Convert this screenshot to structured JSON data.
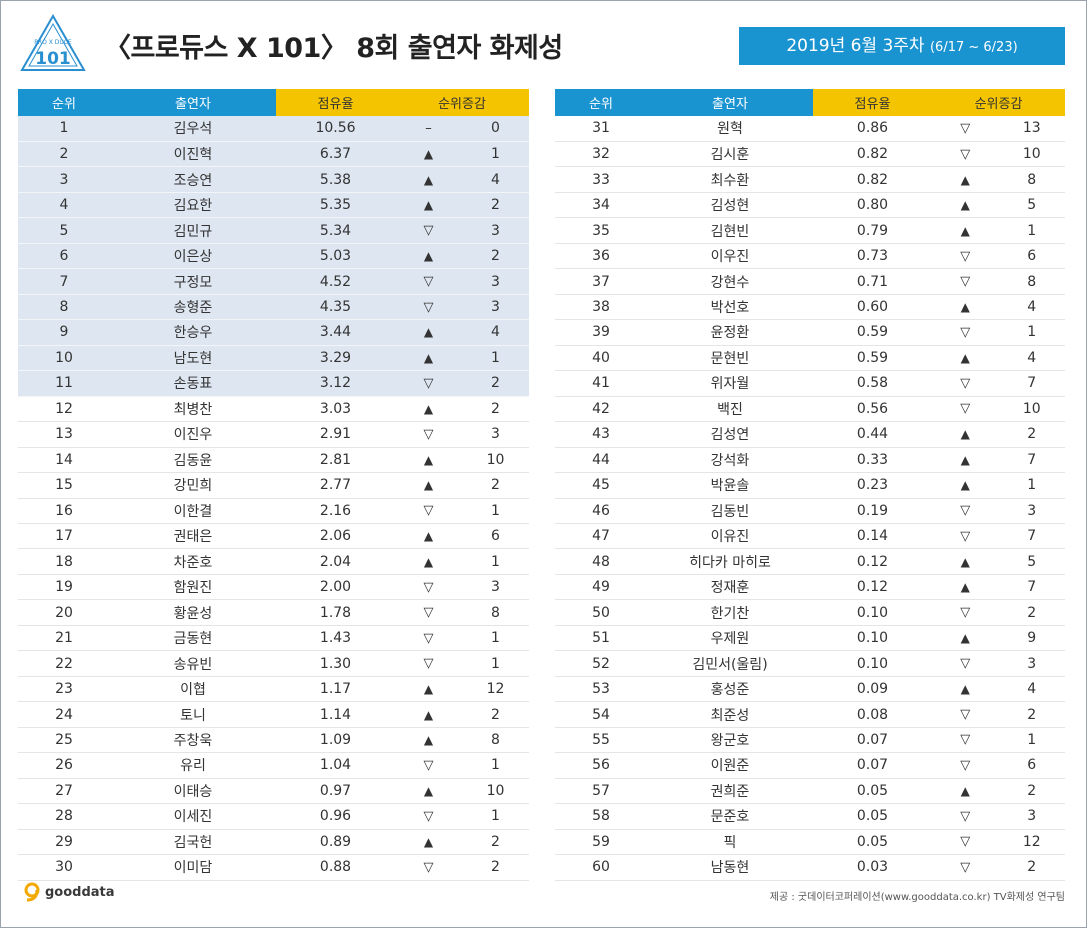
{
  "header": {
    "logo_text": "101",
    "title": "〈프로듀스 X 101〉 8회 출연자 화제성",
    "date_main": "2019년  6월 3주차 ",
    "date_range": "(6/17 ~ 6/23)"
  },
  "columns": {
    "rank": "순위",
    "name": "출연자",
    "share": "점유율",
    "change": "순위증감"
  },
  "left_rows": [
    {
      "rank": "1",
      "name": "김우석",
      "share": "10.56",
      "dir": "none",
      "delta": "0"
    },
    {
      "rank": "2",
      "name": "이진혁",
      "share": "6.37",
      "dir": "up",
      "delta": "1"
    },
    {
      "rank": "3",
      "name": "조승연",
      "share": "5.38",
      "dir": "up",
      "delta": "4"
    },
    {
      "rank": "4",
      "name": "김요한",
      "share": "5.35",
      "dir": "up",
      "delta": "2"
    },
    {
      "rank": "5",
      "name": "김민규",
      "share": "5.34",
      "dir": "down",
      "delta": "3"
    },
    {
      "rank": "6",
      "name": "이은상",
      "share": "5.03",
      "dir": "up",
      "delta": "2"
    },
    {
      "rank": "7",
      "name": "구정모",
      "share": "4.52",
      "dir": "down",
      "delta": "3"
    },
    {
      "rank": "8",
      "name": "송형준",
      "share": "4.35",
      "dir": "down",
      "delta": "3"
    },
    {
      "rank": "9",
      "name": "한승우",
      "share": "3.44",
      "dir": "up",
      "delta": "4"
    },
    {
      "rank": "10",
      "name": "남도현",
      "share": "3.29",
      "dir": "up",
      "delta": "1"
    },
    {
      "rank": "11",
      "name": "손동표",
      "share": "3.12",
      "dir": "down",
      "delta": "2"
    },
    {
      "rank": "12",
      "name": "최병찬",
      "share": "3.03",
      "dir": "up",
      "delta": "2"
    },
    {
      "rank": "13",
      "name": "이진우",
      "share": "2.91",
      "dir": "down",
      "delta": "3"
    },
    {
      "rank": "14",
      "name": "김동윤",
      "share": "2.81",
      "dir": "up",
      "delta": "10"
    },
    {
      "rank": "15",
      "name": "강민희",
      "share": "2.77",
      "dir": "up",
      "delta": "2"
    },
    {
      "rank": "16",
      "name": "이한결",
      "share": "2.16",
      "dir": "down",
      "delta": "1"
    },
    {
      "rank": "17",
      "name": "권태은",
      "share": "2.06",
      "dir": "up",
      "delta": "6"
    },
    {
      "rank": "18",
      "name": "차준호",
      "share": "2.04",
      "dir": "up",
      "delta": "1"
    },
    {
      "rank": "19",
      "name": "함원진",
      "share": "2.00",
      "dir": "down",
      "delta": "3"
    },
    {
      "rank": "20",
      "name": "황윤성",
      "share": "1.78",
      "dir": "down",
      "delta": "8"
    },
    {
      "rank": "21",
      "name": "금동현",
      "share": "1.43",
      "dir": "down",
      "delta": "1"
    },
    {
      "rank": "22",
      "name": "송유빈",
      "share": "1.30",
      "dir": "down",
      "delta": "1"
    },
    {
      "rank": "23",
      "name": "이협",
      "share": "1.17",
      "dir": "up",
      "delta": "12"
    },
    {
      "rank": "24",
      "name": "토니",
      "share": "1.14",
      "dir": "up",
      "delta": "2"
    },
    {
      "rank": "25",
      "name": "주창욱",
      "share": "1.09",
      "dir": "up",
      "delta": "8"
    },
    {
      "rank": "26",
      "name": "유리",
      "share": "1.04",
      "dir": "down",
      "delta": "1"
    },
    {
      "rank": "27",
      "name": "이태승",
      "share": "0.97",
      "dir": "up",
      "delta": "10"
    },
    {
      "rank": "28",
      "name": "이세진",
      "share": "0.96",
      "dir": "down",
      "delta": "1"
    },
    {
      "rank": "29",
      "name": "김국헌",
      "share": "0.89",
      "dir": "up",
      "delta": "2"
    },
    {
      "rank": "30",
      "name": "이미담",
      "share": "0.88",
      "dir": "down",
      "delta": "2"
    }
  ],
  "right_rows": [
    {
      "rank": "31",
      "name": "원혁",
      "share": "0.86",
      "dir": "down",
      "delta": "13"
    },
    {
      "rank": "32",
      "name": "김시훈",
      "share": "0.82",
      "dir": "down",
      "delta": "10"
    },
    {
      "rank": "33",
      "name": "최수환",
      "share": "0.82",
      "dir": "up",
      "delta": "8"
    },
    {
      "rank": "34",
      "name": "김성현",
      "share": "0.80",
      "dir": "up",
      "delta": "5"
    },
    {
      "rank": "35",
      "name": "김현빈",
      "share": "0.79",
      "dir": "up",
      "delta": "1"
    },
    {
      "rank": "36",
      "name": "이우진",
      "share": "0.73",
      "dir": "down",
      "delta": "6"
    },
    {
      "rank": "37",
      "name": "강현수",
      "share": "0.71",
      "dir": "down",
      "delta": "8"
    },
    {
      "rank": "38",
      "name": "박선호",
      "share": "0.60",
      "dir": "up",
      "delta": "4"
    },
    {
      "rank": "39",
      "name": "윤정환",
      "share": "0.59",
      "dir": "down",
      "delta": "1"
    },
    {
      "rank": "40",
      "name": "문현빈",
      "share": "0.59",
      "dir": "up",
      "delta": "4"
    },
    {
      "rank": "41",
      "name": "위자월",
      "share": "0.58",
      "dir": "down",
      "delta": "7"
    },
    {
      "rank": "42",
      "name": "백진",
      "share": "0.56",
      "dir": "down",
      "delta": "10"
    },
    {
      "rank": "43",
      "name": "김성연",
      "share": "0.44",
      "dir": "up",
      "delta": "2"
    },
    {
      "rank": "44",
      "name": "강석화",
      "share": "0.33",
      "dir": "up",
      "delta": "7"
    },
    {
      "rank": "45",
      "name": "박윤솔",
      "share": "0.23",
      "dir": "up",
      "delta": "1"
    },
    {
      "rank": "46",
      "name": "김동빈",
      "share": "0.19",
      "dir": "down",
      "delta": "3"
    },
    {
      "rank": "47",
      "name": "이유진",
      "share": "0.14",
      "dir": "down",
      "delta": "7"
    },
    {
      "rank": "48",
      "name": "히다카 마히로",
      "share": "0.12",
      "dir": "up",
      "delta": "5"
    },
    {
      "rank": "49",
      "name": "정재훈",
      "share": "0.12",
      "dir": "up",
      "delta": "7"
    },
    {
      "rank": "50",
      "name": "한기찬",
      "share": "0.10",
      "dir": "down",
      "delta": "2"
    },
    {
      "rank": "51",
      "name": "우제원",
      "share": "0.10",
      "dir": "up",
      "delta": "9"
    },
    {
      "rank": "52",
      "name": "김민서(울림)",
      "share": "0.10",
      "dir": "down",
      "delta": "3"
    },
    {
      "rank": "53",
      "name": "홍성준",
      "share": "0.09",
      "dir": "up",
      "delta": "4"
    },
    {
      "rank": "54",
      "name": "최준성",
      "share": "0.08",
      "dir": "down",
      "delta": "2"
    },
    {
      "rank": "55",
      "name": "왕군호",
      "share": "0.07",
      "dir": "down",
      "delta": "1"
    },
    {
      "rank": "56",
      "name": "이원준",
      "share": "0.07",
      "dir": "down",
      "delta": "6"
    },
    {
      "rank": "57",
      "name": "권희준",
      "share": "0.05",
      "dir": "up",
      "delta": "2"
    },
    {
      "rank": "58",
      "name": "문준호",
      "share": "0.05",
      "dir": "down",
      "delta": "3"
    },
    {
      "rank": "59",
      "name": "픽",
      "share": "0.05",
      "dir": "down",
      "delta": "12"
    },
    {
      "rank": "60",
      "name": "남동현",
      "share": "0.03",
      "dir": "down",
      "delta": "2"
    }
  ],
  "arrows": {
    "up": "▲",
    "down": "▽",
    "none": "–"
  },
  "highlight_top": 11,
  "colors": {
    "header_blue": "#1a93d1",
    "header_yellow": "#f5c400",
    "top_row_bg": "#dde6f1"
  },
  "footer": {
    "brand": "gooddata",
    "source": "제공 : 굿데이터코퍼레이션(www.gooddata.co.kr) TV화제성 연구팀"
  }
}
